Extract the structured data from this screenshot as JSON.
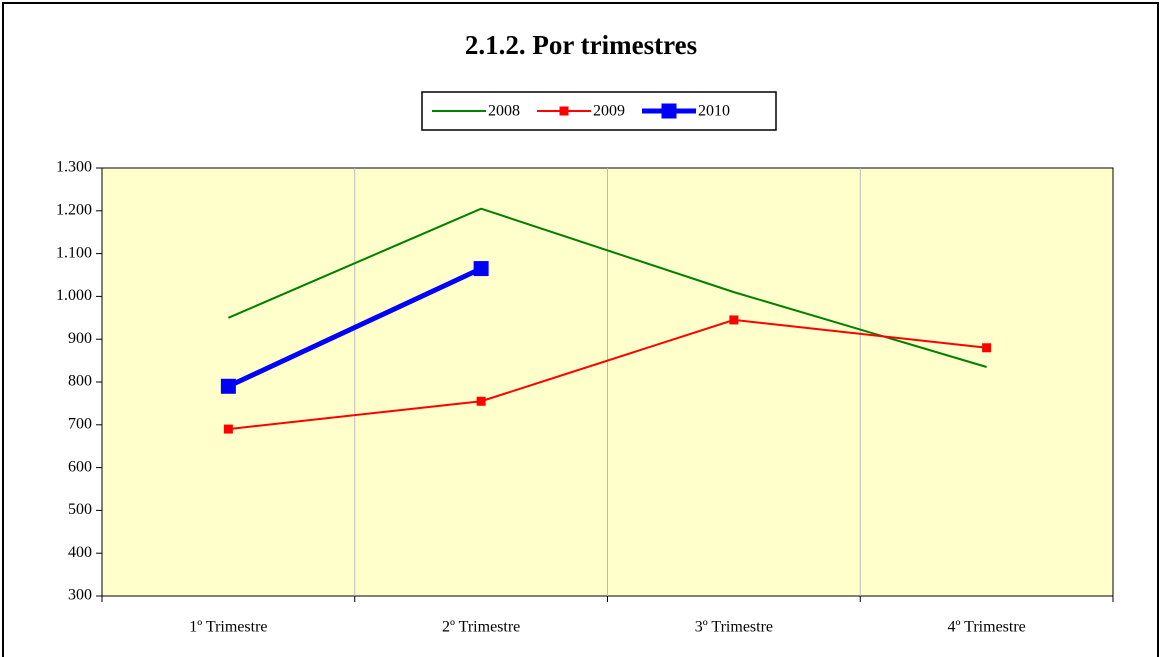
{
  "chart_data": {
    "type": "line",
    "title": "2.1.2. Por trimestres",
    "categories": [
      "1º Trimestre",
      "2º Trimestre",
      "3º Trimestre",
      "4º Trimestre"
    ],
    "series": [
      {
        "name": "2008",
        "color": "#008000",
        "marker": "none",
        "values": [
          950,
          1205,
          1010,
          835
        ]
      },
      {
        "name": "2009",
        "color": "#ff0000",
        "marker": "square",
        "values": [
          690,
          755,
          945,
          880
        ]
      },
      {
        "name": "2010",
        "color": "#0000ff",
        "marker": "square",
        "values": [
          790,
          1065,
          null,
          null
        ]
      }
    ],
    "ylim": [
      300,
      1300
    ],
    "yticks": [
      300,
      400,
      500,
      600,
      700,
      800,
      900,
      {
        "value": 1000,
        "label": "1.000"
      },
      {
        "value": 1100,
        "label": "1.100"
      },
      {
        "value": 1200,
        "label": "1.200"
      },
      {
        "value": 1300,
        "label": "1.300"
      }
    ],
    "grid": false,
    "legend": "top"
  }
}
